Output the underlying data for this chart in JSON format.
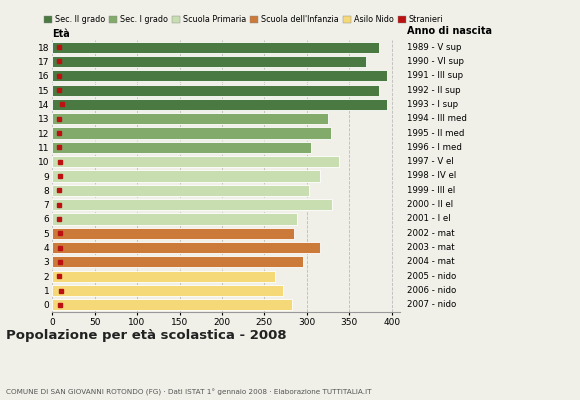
{
  "ages": [
    18,
    17,
    16,
    15,
    14,
    13,
    12,
    11,
    10,
    9,
    8,
    7,
    6,
    5,
    4,
    3,
    2,
    1,
    0
  ],
  "years": [
    "1989 - V sup",
    "1990 - VI sup",
    "1991 - III sup",
    "1992 - II sup",
    "1993 - I sup",
    "1994 - III med",
    "1995 - II med",
    "1996 - I med",
    "1997 - V el",
    "1998 - IV el",
    "1999 - III el",
    "2000 - II el",
    "2001 - I el",
    "2002 - mat",
    "2003 - mat",
    "2004 - mat",
    "2005 - nido",
    "2006 - nido",
    "2007 - nido"
  ],
  "values": [
    385,
    370,
    395,
    385,
    395,
    325,
    328,
    305,
    338,
    315,
    302,
    330,
    288,
    285,
    315,
    295,
    263,
    272,
    283
  ],
  "stranieri": [
    8,
    8,
    8,
    8,
    12,
    8,
    8,
    8,
    9,
    9,
    8,
    8,
    8,
    9,
    9,
    9,
    8,
    10,
    9
  ],
  "categories": {
    "sec2": [
      18,
      17,
      16,
      15,
      14
    ],
    "sec1": [
      13,
      12,
      11
    ],
    "primaria": [
      10,
      9,
      8,
      7,
      6
    ],
    "infanzia": [
      5,
      4,
      3
    ],
    "nido": [
      2,
      1,
      0
    ]
  },
  "colors": {
    "sec2": "#4a7a42",
    "sec1": "#82aa6a",
    "primaria": "#c8ddb0",
    "infanzia": "#cc7a3a",
    "nido": "#f5d878"
  },
  "stranieri_color": "#bb1111",
  "legend_labels": [
    "Sec. II grado",
    "Sec. I grado",
    "Scuola Primaria",
    "Scuola dell'Infanzia",
    "Asilo Nido",
    "Stranieri"
  ],
  "title": "Popolazione per età scolastica - 2008",
  "subtitle": "COMUNE DI SAN GIOVANNI ROTONDO (FG) · Dati ISTAT 1° gennaio 2008 · Elaborazione TUTTITALIA.IT",
  "xlabel_eta": "Età",
  "xlabel_anno": "Anno di nascita",
  "xlim": [
    0,
    410
  ],
  "xticks": [
    0,
    50,
    100,
    150,
    200,
    250,
    300,
    350,
    400
  ],
  "bar_height": 0.78,
  "background_color": "#f0f0e8",
  "plot_bg": "#f0f0e8",
  "grid_color": "#bbbbbb"
}
